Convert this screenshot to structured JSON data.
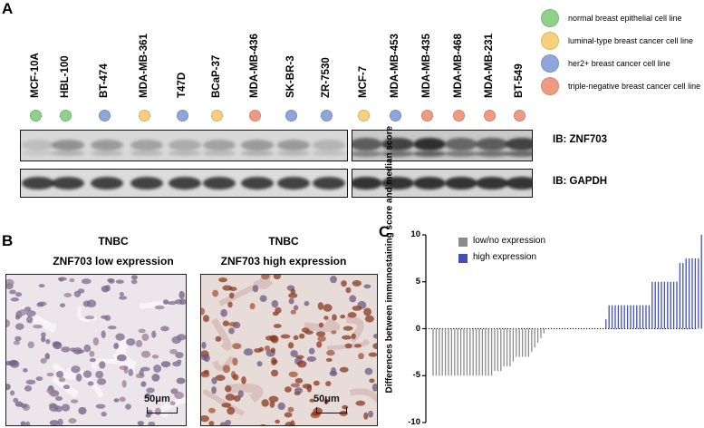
{
  "panels": {
    "a": "A",
    "b": "B",
    "c": "C"
  },
  "lanes_left": [
    {
      "label": "MCF-10A",
      "type": "normal"
    },
    {
      "label": "HBL-100",
      "type": "normal"
    },
    {
      "label": "BT-474",
      "type": "her2"
    },
    {
      "label": "MDA-MB-361",
      "type": "luminal"
    },
    {
      "label": "T47D",
      "type": "her2"
    },
    {
      "label": "BCaP-37",
      "type": "luminal"
    },
    {
      "label": "MDA-MB-436",
      "type": "tnbc"
    },
    {
      "label": "SK-BR-3",
      "type": "her2"
    },
    {
      "label": "ZR-7530",
      "type": "her2"
    }
  ],
  "lanes_right": [
    {
      "label": "MCF-7",
      "type": "luminal"
    },
    {
      "label": "MDA-MB-453",
      "type": "her2"
    },
    {
      "label": "MDA-MB-435",
      "type": "tnbc"
    },
    {
      "label": "MDA-MB-468",
      "type": "tnbc"
    },
    {
      "label": "MDA-MB-231",
      "type": "tnbc"
    },
    {
      "label": "BT-549",
      "type": "tnbc"
    }
  ],
  "colors": {
    "normal": "#8fd18a",
    "luminal": "#f7d07a",
    "her2": "#8fa6dc",
    "tnbc": "#f19a82",
    "low_bar": "#8c8c8c",
    "high_bar": "#3f51b5"
  },
  "legend": [
    {
      "type": "normal",
      "label": "normal breast epithelial cell line"
    },
    {
      "type": "luminal",
      "label": "luminal-type breast cancer cell line"
    },
    {
      "type": "her2",
      "label": "her2+ breast cancer cell line"
    },
    {
      "type": "tnbc",
      "label": "triple-negative breast cancer cell line"
    }
  ],
  "ib_labels": {
    "znf703": "IB: ZNF703",
    "gapdh": "IB: GAPDH"
  },
  "panel_b": {
    "left_title_1": "TNBC",
    "left_title_2": "ZNF703 low expression",
    "right_title_1": "TNBC",
    "right_title_2": "ZNF703 high expression",
    "scale_left": "50μm",
    "scale_right": "50μm"
  },
  "chart_data": {
    "type": "bar",
    "ylabel": "Differences between immunostaining score and median score",
    "ylim": [
      -10,
      10
    ],
    "yticks": [
      10,
      5,
      0,
      -5,
      -10
    ],
    "legend": [
      "low/no expression",
      "high expression"
    ],
    "series": [
      {
        "name": "low/no expression",
        "values": [
          -5,
          -5,
          -5,
          -5,
          -5,
          -5,
          -5,
          -5,
          -5,
          -5,
          -5,
          -5,
          -5,
          -5,
          -5,
          -5,
          -5,
          -5,
          -5,
          -5,
          -4.5,
          -4.5,
          -4.5,
          -4,
          -4,
          -4,
          -3.5,
          -3,
          -3,
          -3,
          -3,
          -3,
          -2.5,
          -2,
          -1.5,
          -1,
          -0.5
        ]
      },
      {
        "name": "high expression",
        "values": [
          1,
          2.5,
          2.5,
          2.5,
          2.5,
          2.5,
          2.5,
          2.5,
          2.5,
          2.5,
          2.5,
          2.5,
          2.5,
          2.5,
          2.5,
          5,
          5,
          5,
          5,
          5,
          5,
          5,
          5,
          5,
          7,
          7,
          7.5,
          7.5,
          7.5,
          7.5,
          7.5,
          10
        ]
      }
    ]
  }
}
